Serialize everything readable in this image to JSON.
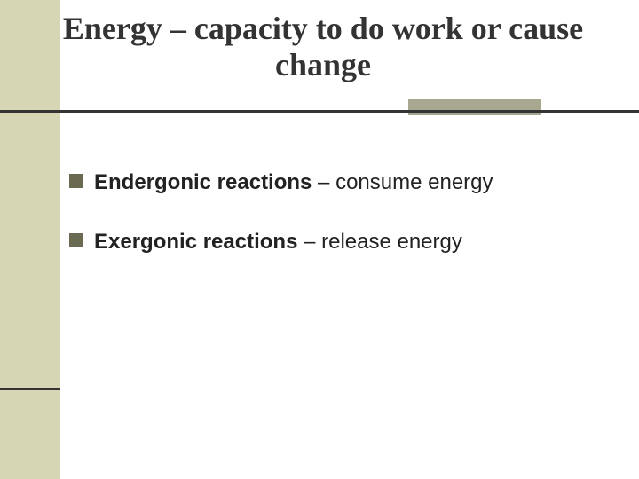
{
  "colors": {
    "background": "#ffffff",
    "sidebar": "#d7d6b4",
    "title_text": "#333333",
    "rule": "#333333",
    "accent_box": "#a8a890",
    "bullet_square": "#6a6a52",
    "body_text": "#222222"
  },
  "title": {
    "text": "Energy – capacity to do work or cause change",
    "fontsize": 36
  },
  "bullets": {
    "fontsize": 24,
    "items": [
      {
        "bold": "Endergonic reactions",
        "rest": " – consume energy"
      },
      {
        "bold": "Exergonic reactions",
        "rest": " – release energy"
      }
    ]
  }
}
